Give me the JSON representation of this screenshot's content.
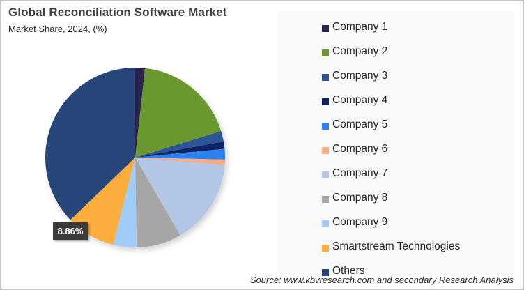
{
  "header": {
    "title": "Global Reconciliation Software Market",
    "subtitle": "Market Share, 2024, (%)"
  },
  "data_label": "8.86%",
  "source": "Source: www.kbvresearch.com and secondary Research Analysis",
  "chart_data": {
    "type": "pie",
    "title": "Global Reconciliation Software Market",
    "subtitle": "Market Share, 2024, (%)",
    "start_angle_deg": 0,
    "direction": "clockwise",
    "legend_position": "right",
    "categories": [
      "Company 1",
      "Company 2",
      "Company 3",
      "Company 4",
      "Company 5",
      "Company 6",
      "Company 7",
      "Company 8",
      "Company 9",
      "Smartstream Technologies",
      "Others"
    ],
    "values": [
      1.75,
      18.5,
      1.9,
      1.3,
      1.9,
      1.0,
      15.3,
      8.1,
      4.2,
      8.86,
      37.19
    ],
    "colors": [
      "#2b2350",
      "#6b972f",
      "#2f5597",
      "#0d2262",
      "#2f80ee",
      "#f4ad87",
      "#b3c6e6",
      "#a6a6a6",
      "#9fcdf8",
      "#fbad3c",
      "#264478"
    ],
    "annotations": [
      {
        "category": "Smartstream Technologies",
        "label": "8.86%"
      }
    ],
    "source": "Source: www.kbvresearch.com and secondary Research Analysis"
  },
  "legend": {
    "items": [
      {
        "label": "Company 1",
        "color": "#2b2350"
      },
      {
        "label": "Company 2",
        "color": "#6b972f"
      },
      {
        "label": "Company 3",
        "color": "#2f5597"
      },
      {
        "label": "Company 4",
        "color": "#0d2262"
      },
      {
        "label": "Company 5",
        "color": "#2f80ee"
      },
      {
        "label": "Company 6",
        "color": "#f4ad87"
      },
      {
        "label": "Company 7",
        "color": "#b3c6e6"
      },
      {
        "label": "Company 8",
        "color": "#a6a6a6"
      },
      {
        "label": "Company 9",
        "color": "#9fcdf8"
      },
      {
        "label": "Smartstream Technologies",
        "color": "#fbad3c"
      },
      {
        "label": "Others",
        "color": "#264478"
      }
    ]
  }
}
